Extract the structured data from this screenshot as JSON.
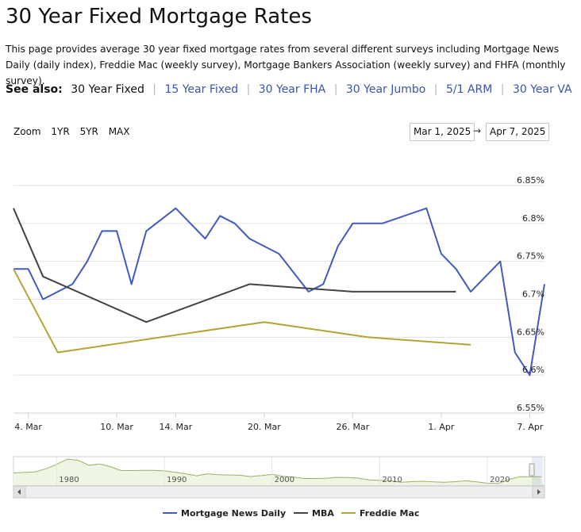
{
  "page": {
    "title": "30 Year Fixed Mortgage Rates",
    "description": "This page provides average 30 year fixed mortgage rates from several different surveys including Mortgage News Daily (daily index), Freddie Mac (weekly survey), Mortgage Bankers Association (weekly survey) and FHFA (monthly survey).",
    "see_also_label": "See also:",
    "see_also": [
      "30 Year Fixed",
      "15 Year Fixed",
      "30 Year FHA",
      "30 Year Jumbo",
      "5/1 ARM",
      "30 Year VA"
    ]
  },
  "controls": {
    "zoom_label": "Zoom",
    "zoom_options": [
      "1YR",
      "5YR",
      "MAX"
    ],
    "date_from": "Mar 1, 2025",
    "date_arrow": "→",
    "date_to": "Apr 7, 2025"
  },
  "colors": {
    "mnd": "#3f5bbf",
    "mba": "#444444",
    "freddie": "#b5a335",
    "grid": "#e2e2e2",
    "navigator_fill": "#eef5e2",
    "navigator_line": "#9bb065"
  },
  "chart_data": {
    "type": "line",
    "title": "",
    "xlabel": "",
    "ylabel": "",
    "x_range": [
      "2025-03-03",
      "2025-04-07"
    ],
    "ylim": [
      6.55,
      6.85
    ],
    "y_ticks": [
      "6.85%",
      "6.8%",
      "6.75%",
      "6.7%",
      "6.65%",
      "6.6%",
      "6.55%"
    ],
    "x_ticks": [
      {
        "date": "2025-03-04",
        "label": "4. Mar"
      },
      {
        "date": "2025-03-10",
        "label": "10. Mar"
      },
      {
        "date": "2025-03-14",
        "label": "14. Mar"
      },
      {
        "date": "2025-03-20",
        "label": "20. Mar"
      },
      {
        "date": "2025-03-26",
        "label": "26. Mar"
      },
      {
        "date": "2025-04-01",
        "label": "1. Apr"
      },
      {
        "date": "2025-04-07",
        "label": "7. Apr"
      }
    ],
    "legend_position": "bottom",
    "series": [
      {
        "name": "Mortgage News Daily",
        "color_key": "mnd",
        "points": [
          [
            "2025-03-03",
            6.74
          ],
          [
            "2025-03-04",
            6.74
          ],
          [
            "2025-03-05",
            6.7
          ],
          [
            "2025-03-07",
            6.72
          ],
          [
            "2025-03-08",
            6.75
          ],
          [
            "2025-03-09",
            6.79
          ],
          [
            "2025-03-10",
            6.79
          ],
          [
            "2025-03-11",
            6.72
          ],
          [
            "2025-03-12",
            6.79
          ],
          [
            "2025-03-14",
            6.82
          ],
          [
            "2025-03-16",
            6.78
          ],
          [
            "2025-03-17",
            6.81
          ],
          [
            "2025-03-18",
            6.8
          ],
          [
            "2025-03-19",
            6.78
          ],
          [
            "2025-03-21",
            6.76
          ],
          [
            "2025-03-23",
            6.71
          ],
          [
            "2025-03-24",
            6.72
          ],
          [
            "2025-03-25",
            6.77
          ],
          [
            "2025-03-26",
            6.8
          ],
          [
            "2025-03-28",
            6.8
          ],
          [
            "2025-03-31",
            6.82
          ],
          [
            "2025-04-01",
            6.76
          ],
          [
            "2025-04-02",
            6.74
          ],
          [
            "2025-04-03",
            6.71
          ],
          [
            "2025-04-05",
            6.75
          ],
          [
            "2025-04-06",
            6.63
          ],
          [
            "2025-04-07",
            6.6
          ],
          [
            "2025-04-08",
            6.72
          ]
        ]
      },
      {
        "name": "MBA",
        "color_key": "mba",
        "points": [
          [
            "2025-03-03",
            6.82
          ],
          [
            "2025-03-05",
            6.73
          ],
          [
            "2025-03-12",
            6.67
          ],
          [
            "2025-03-19",
            6.72
          ],
          [
            "2025-03-26",
            6.71
          ],
          [
            "2025-04-02",
            6.71
          ]
        ]
      },
      {
        "name": "Freddie Mac",
        "color_key": "freddie",
        "points": [
          [
            "2025-03-03",
            6.74
          ],
          [
            "2025-03-06",
            6.63
          ],
          [
            "2025-03-20",
            6.67
          ],
          [
            "2025-03-27",
            6.65
          ],
          [
            "2025-04-03",
            6.64
          ]
        ]
      }
    ]
  },
  "navigator": {
    "labels": [
      "1980",
      "1990",
      "2000",
      "2010",
      "2020"
    ],
    "series": [
      [
        "1976",
        8.9
      ],
      [
        "1978",
        9.5
      ],
      [
        "1979",
        11.2
      ],
      [
        "1980",
        13.7
      ],
      [
        "1981",
        16.6
      ],
      [
        "1982",
        16.0
      ],
      [
        "1983",
        13.2
      ],
      [
        "1984",
        13.9
      ],
      [
        "1985",
        12.4
      ],
      [
        "1986",
        10.2
      ],
      [
        "1987",
        10.2
      ],
      [
        "1988",
        10.3
      ],
      [
        "1989",
        10.3
      ],
      [
        "1990",
        10.1
      ],
      [
        "1991",
        9.3
      ],
      [
        "1992",
        8.4
      ],
      [
        "1993",
        7.3
      ],
      [
        "1994",
        8.4
      ],
      [
        "1995",
        7.9
      ],
      [
        "1996",
        7.8
      ],
      [
        "1997",
        7.6
      ],
      [
        "1998",
        6.9
      ],
      [
        "1999",
        7.4
      ],
      [
        "2000",
        8.1
      ],
      [
        "2001",
        7.0
      ],
      [
        "2002",
        6.5
      ],
      [
        "2003",
        5.8
      ],
      [
        "2004",
        5.8
      ],
      [
        "2005",
        5.9
      ],
      [
        "2006",
        6.4
      ],
      [
        "2007",
        6.3
      ],
      [
        "2008",
        6.0
      ],
      [
        "2009",
        5.0
      ],
      [
        "2010",
        4.7
      ],
      [
        "2011",
        4.5
      ],
      [
        "2012",
        3.7
      ],
      [
        "2013",
        4.0
      ],
      [
        "2014",
        4.2
      ],
      [
        "2015",
        3.9
      ],
      [
        "2016",
        3.7
      ],
      [
        "2017",
        4.0
      ],
      [
        "2018",
        4.5
      ],
      [
        "2019",
        3.9
      ],
      [
        "2020",
        3.1
      ],
      [
        "2021",
        3.0
      ],
      [
        "2022",
        5.3
      ],
      [
        "2023",
        6.8
      ],
      [
        "2024",
        6.7
      ],
      [
        "2025",
        6.8
      ]
    ]
  }
}
